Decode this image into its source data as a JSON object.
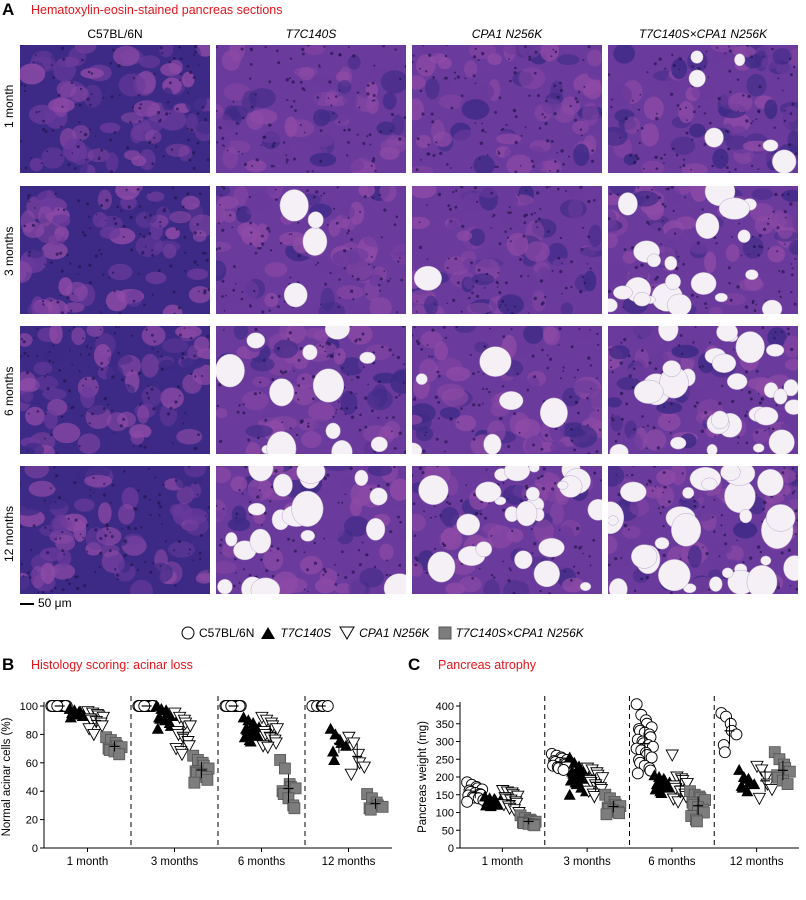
{
  "panel_a": {
    "letter": "A",
    "title": "Hematoxylin-eosin-stained pancreas sections",
    "columns": [
      "C57BL/6N",
      "T7C140S",
      "CPA1 N256K",
      "T7C140S×CPA1 N256K"
    ],
    "rows": [
      "1 month",
      "3 months",
      "6 months",
      "12 months"
    ],
    "scale_bar_label": "50 μm"
  },
  "legend": {
    "items": [
      "C57BL/6N",
      "T7C140S",
      "CPA1 N256K",
      "T7C140S×CPA1 N256K"
    ]
  },
  "panel_b": {
    "letter": "B",
    "title": "Histology scoring: acinar loss"
  },
  "panel_c": {
    "letter": "C",
    "title": "Pancreas atrophy"
  },
  "colors": {
    "title_red": "#e3141b",
    "stain_dark": "#3d2a86",
    "stain_mid": "#6a3a9c",
    "stain_pink": "#8e4aa6",
    "fat_white": "#f4f0f6",
    "gray_square": "#7d7d7d"
  },
  "chart_data": [
    {
      "type": "scatter",
      "title": "Histology scoring: acinar loss",
      "xlabel": "",
      "ylabel": "Normal acinar cells (%)",
      "ylim": [
        0,
        100
      ],
      "yticks": [
        0,
        20,
        40,
        60,
        80,
        100
      ],
      "categories": [
        "1 month",
        "3 months",
        "6 months",
        "12 months"
      ],
      "series": [
        {
          "name": "C57BL/6N",
          "marker": "open-circle",
          "values": [
            [
              100,
              100,
              100,
              100,
              100,
              100,
              100,
              100,
              100,
              100,
              100,
              100
            ],
            [
              100,
              100,
              100,
              100,
              100,
              100,
              100,
              100,
              100,
              100,
              100,
              100
            ],
            [
              100,
              100,
              100,
              100,
              100,
              100,
              100,
              100,
              100,
              100,
              100,
              100
            ],
            [
              100,
              100,
              100,
              100,
              100
            ]
          ]
        },
        {
          "name": "T7C140S",
          "marker": "filled-triangle",
          "values": [
            [
              98,
              97,
              96,
              96,
              95,
              95,
              94,
              94,
              93,
              93,
              92
            ],
            [
              100,
              98,
              97,
              95,
              93,
              92,
              91,
              90,
              88,
              86,
              84
            ],
            [
              92,
              90,
              88,
              86,
              85,
              84,
              83,
              82,
              80,
              79,
              78,
              76,
              75
            ],
            [
              84,
              80,
              76,
              74,
              72,
              68,
              62
            ]
          ]
        },
        {
          "name": "CPA1 N256K",
          "marker": "open-triangle",
          "values": [
            [
              96,
              95,
              94,
              93,
              92,
              91,
              90,
              89,
              88,
              86,
              84,
              80
            ],
            [
              95,
              92,
              90,
              88,
              86,
              82,
              80,
              78,
              75,
              72,
              70,
              68,
              66
            ],
            [
              92,
              90,
              88,
              86,
              84,
              82,
              80,
              78,
              76,
              74,
              72,
              71
            ],
            [
              78,
              74,
              66,
              60,
              57,
              52
            ]
          ]
        },
        {
          "name": "T7C140S×CPA1 N256K",
          "marker": "gray-square",
          "values": [
            [
              78,
              76,
              74,
              72,
              71,
              70,
              69,
              68,
              66
            ],
            [
              65,
              62,
              60,
              58,
              56,
              54,
              53,
              52,
              50,
              48,
              46
            ],
            [
              62,
              56,
              45,
              43,
              42,
              40,
              38,
              35,
              30,
              28
            ],
            [
              38,
              35,
              32,
              30,
              29,
              28,
              27
            ]
          ]
        }
      ]
    },
    {
      "type": "scatter",
      "title": "Pancreas atrophy",
      "xlabel": "",
      "ylabel": "Pancreas weight (mg)",
      "ylim": [
        0,
        400
      ],
      "yticks": [
        0,
        50,
        100,
        150,
        200,
        250,
        300,
        350,
        400
      ],
      "categories": [
        "1 month",
        "3 months",
        "6 months",
        "12 months"
      ],
      "series": [
        {
          "name": "C57BL/6N",
          "marker": "open-circle",
          "values": [
            [
              185,
              178,
              172,
              168,
              165,
              162,
              158,
              155,
              152,
              150,
              148,
              145,
              142,
              140,
              135,
              130
            ],
            [
              265,
              260,
              255,
              252,
              248,
              245,
              242,
              240,
              238,
              235,
              232,
              228,
              225,
              220
            ],
            [
              405,
              375,
              360,
              350,
              340,
              335,
              330,
              325,
              320,
              312,
              305,
              300,
              295,
              290,
              285,
              280,
              275,
              268,
              262,
              255,
              248,
              240,
              232,
              225,
              218,
              210
            ],
            [
              380,
              370,
              350,
              330,
              320,
              290,
              270
            ]
          ]
        },
        {
          "name": "T7C140S",
          "marker": "filled-triangle",
          "values": [
            [
              145,
              140,
              138,
              135,
              132,
              130,
              128,
              126,
              124,
              122,
              120,
              118
            ],
            [
              255,
              240,
              230,
              225,
              220,
              215,
              210,
              205,
              200,
              195,
              190,
              185,
              180,
              170,
              160,
              150
            ],
            [
              205,
              200,
              195,
              190,
              185,
              180,
              178,
              175,
              172,
              170,
              165,
              160,
              155
            ],
            [
              220,
              200,
              195,
              185,
              180,
              175,
              170,
              160
            ]
          ]
        },
        {
          "name": "CPA1 N256K",
          "marker": "open-triangle",
          "values": [
            [
              162,
              158,
              155,
              150,
              146,
              142,
              138,
              135,
              130,
              126,
              122,
              118,
              112,
              108,
              100
            ],
            [
              225,
              220,
              212,
              205,
              198,
              190,
              185,
              178,
              170,
              165,
              160,
              152,
              145
            ],
            [
              262,
              200,
              195,
              190,
              182,
              175,
              168,
              160,
              152,
              145,
              138,
              130
            ],
            [
              230,
              220,
              200,
              180,
              165,
              140
            ]
          ]
        },
        {
          "name": "T7C140S×CPA1 N256K",
          "marker": "gray-square",
          "values": [
            [
              92,
              85,
              80,
              77,
              74,
              72,
              70,
              68,
              66,
              64
            ],
            [
              150,
              140,
              130,
              122,
              118,
              114,
              110,
              106,
              102,
              98,
              95
            ],
            [
              160,
              150,
              145,
              140,
              135,
              128,
              122,
              115,
              108,
              100,
              90,
              80,
              75
            ],
            [
              270,
              250,
              235,
              225,
              215,
              205,
              198,
              190,
              180
            ]
          ]
        }
      ]
    }
  ]
}
